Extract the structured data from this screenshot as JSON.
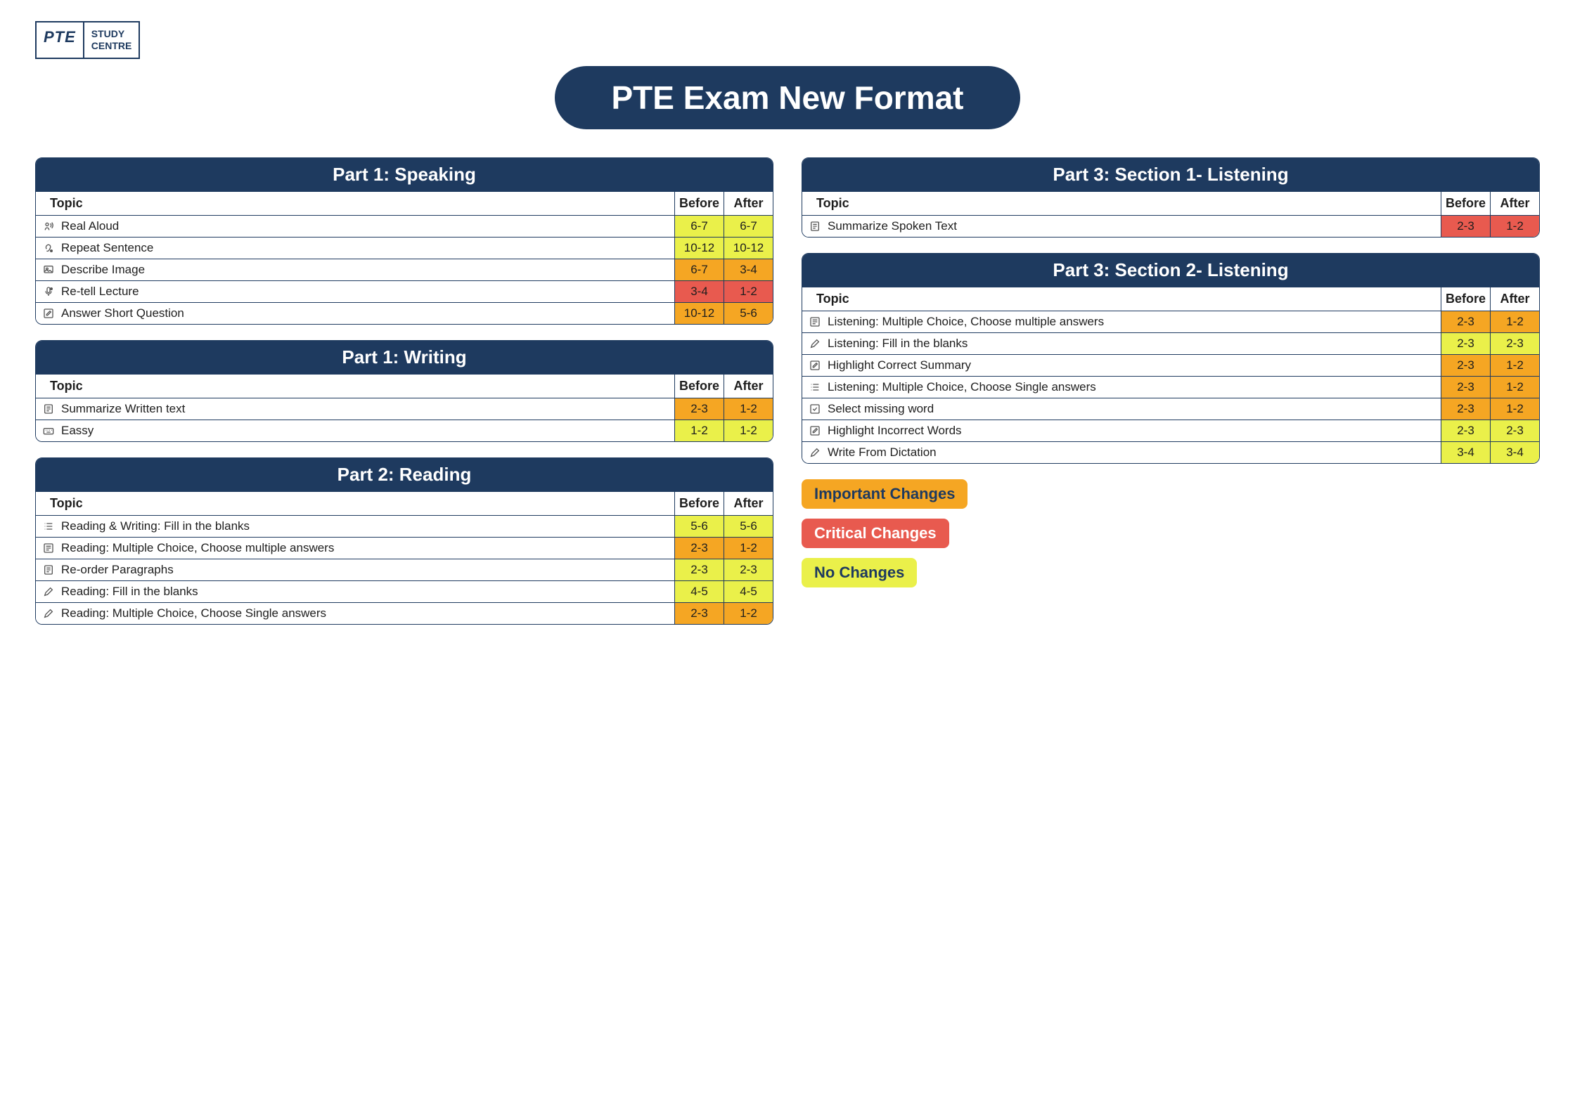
{
  "colors": {
    "navy": "#1e3a5f",
    "white": "#ffffff",
    "yellow": "#eaf04a",
    "orange": "#f5a623",
    "red": "#e85a4f"
  },
  "logo": {
    "left": "PTE",
    "right_line1": "STUDY",
    "right_line2": "CENTRE"
  },
  "title": "PTE Exam New Format",
  "headers": {
    "topic": "Topic",
    "before": "Before",
    "after": "After"
  },
  "legend": [
    {
      "label": "Important Changes",
      "bg": "#f5a623",
      "fg": "#1e3a5f"
    },
    {
      "label": "Critical Changes",
      "bg": "#e85a4f",
      "fg": "#ffffff"
    },
    {
      "label": "No Changes",
      "bg": "#eaf04a",
      "fg": "#1e3a5f"
    }
  ],
  "sections": {
    "left": [
      {
        "title": "Part 1: Speaking",
        "rows": [
          {
            "icon": "speak",
            "topic": "Real Aloud",
            "before": "6-7",
            "before_bg": "#eaf04a",
            "after": "6-7",
            "after_bg": "#eaf04a"
          },
          {
            "icon": "ear",
            "topic": "Repeat Sentence",
            "before": "10-12",
            "before_bg": "#eaf04a",
            "after": "10-12",
            "after_bg": "#eaf04a"
          },
          {
            "icon": "image",
            "topic": "Describe Image",
            "before": "6-7",
            "before_bg": "#f5a623",
            "after": "3-4",
            "after_bg": "#f5a623"
          },
          {
            "icon": "mic",
            "topic": "Re-tell Lecture",
            "before": "3-4",
            "before_bg": "#e85a4f",
            "after": "1-2",
            "after_bg": "#e85a4f"
          },
          {
            "icon": "edit",
            "topic": "Answer Short Question",
            "before": "10-12",
            "before_bg": "#f5a623",
            "after": "5-6",
            "after_bg": "#f5a623"
          }
        ]
      },
      {
        "title": "Part 1: Writing",
        "rows": [
          {
            "icon": "note",
            "topic": "Summarize Written text",
            "before": "2-3",
            "before_bg": "#f5a623",
            "after": "1-2",
            "after_bg": "#f5a623"
          },
          {
            "icon": "keyboard",
            "topic": "Eassy",
            "before": "1-2",
            "before_bg": "#eaf04a",
            "after": "1-2",
            "after_bg": "#eaf04a"
          }
        ]
      },
      {
        "title": "Part 2: Reading",
        "rows": [
          {
            "icon": "list",
            "topic": "Reading & Writing: Fill in the blanks",
            "before": "5-6",
            "before_bg": "#eaf04a",
            "after": "5-6",
            "after_bg": "#eaf04a"
          },
          {
            "icon": "checklist",
            "topic": "Reading: Multiple Choice, Choose multiple answers",
            "before": "2-3",
            "before_bg": "#f5a623",
            "after": "1-2",
            "after_bg": "#f5a623"
          },
          {
            "icon": "note",
            "topic": "Re-order Paragraphs",
            "before": "2-3",
            "before_bg": "#eaf04a",
            "after": "2-3",
            "after_bg": "#eaf04a"
          },
          {
            "icon": "pencil",
            "topic": "Reading: Fill in the blanks",
            "before": "4-5",
            "before_bg": "#eaf04a",
            "after": "4-5",
            "after_bg": "#eaf04a"
          },
          {
            "icon": "pencil",
            "topic": "Reading: Multiple Choice, Choose Single answers",
            "before": "2-3",
            "before_bg": "#f5a623",
            "after": "1-2",
            "after_bg": "#f5a623"
          }
        ]
      }
    ],
    "right": [
      {
        "title": "Part 3: Section 1- Listening",
        "rows": [
          {
            "icon": "note",
            "topic": "Summarize Spoken Text",
            "before": "2-3",
            "before_bg": "#e85a4f",
            "after": "1-2",
            "after_bg": "#e85a4f"
          }
        ]
      },
      {
        "title": "Part 3: Section 2- Listening",
        "rows": [
          {
            "icon": "checklist",
            "topic": "Listening: Multiple Choice, Choose multiple answers",
            "before": "2-3",
            "before_bg": "#f5a623",
            "after": "1-2",
            "after_bg": "#f5a623"
          },
          {
            "icon": "pencil",
            "topic": "Listening: Fill in the blanks",
            "before": "2-3",
            "before_bg": "#eaf04a",
            "after": "2-3",
            "after_bg": "#eaf04a"
          },
          {
            "icon": "edit",
            "topic": "Highlight Correct Summary",
            "before": "2-3",
            "before_bg": "#f5a623",
            "after": "1-2",
            "after_bg": "#f5a623"
          },
          {
            "icon": "list",
            "topic": "Listening: Multiple Choice, Choose Single answers",
            "before": "2-3",
            "before_bg": "#f5a623",
            "after": "1-2",
            "after_bg": "#f5a623"
          },
          {
            "icon": "check",
            "topic": "Select missing word",
            "before": "2-3",
            "before_bg": "#f5a623",
            "after": "1-2",
            "after_bg": "#f5a623"
          },
          {
            "icon": "edit",
            "topic": "Highlight Incorrect Words",
            "before": "2-3",
            "before_bg": "#eaf04a",
            "after": "2-3",
            "after_bg": "#eaf04a"
          },
          {
            "icon": "pencil",
            "topic": "Write From Dictation",
            "before": "3-4",
            "before_bg": "#eaf04a",
            "after": "3-4",
            "after_bg": "#eaf04a"
          }
        ]
      }
    ]
  }
}
